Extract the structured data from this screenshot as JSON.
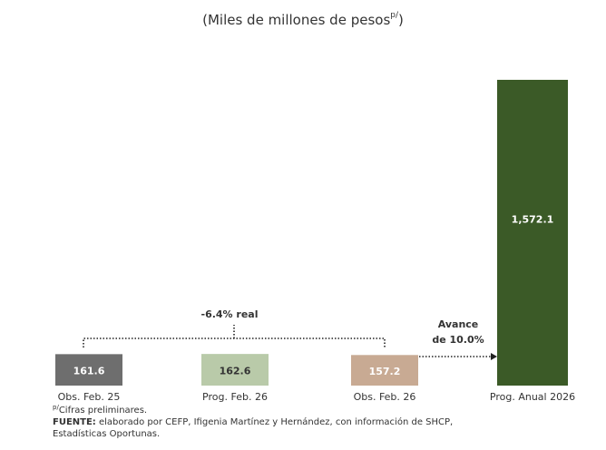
{
  "chart_data": {
    "type": "bar",
    "title": [
      "(Miles de millones de pesos",
      "p/",
      ")"
    ],
    "categories": [
      "Obs. Feb. 25",
      "Prog. Feb. 26",
      "Obs. Feb. 26",
      "Prog. Anual 2026"
    ],
    "values": [
      161.6,
      162.6,
      157.2,
      1572.1
    ],
    "value_labels": [
      "161.6",
      "162.6",
      "157.2",
      "1,572.1"
    ],
    "colors": [
      "#6e6e6e",
      "#b9caa9",
      "#c8aa93",
      "#3b5a27"
    ],
    "label_colors": [
      "#ffffff",
      "#333333",
      "#ffffff",
      "#ffffff"
    ],
    "ylim": [
      0,
      1600
    ],
    "annotations": {
      "change": "-6.4% real",
      "progress": [
        "Avance",
        "de 10.0%"
      ]
    },
    "footnote": [
      "p/",
      "Cifras preliminares."
    ],
    "source": [
      "FUENTE:",
      " elaborado por CEFP, Ifigenia Martínez y Hernández, con información de SHCP,",
      "Estadísticas Oportunas."
    ]
  }
}
